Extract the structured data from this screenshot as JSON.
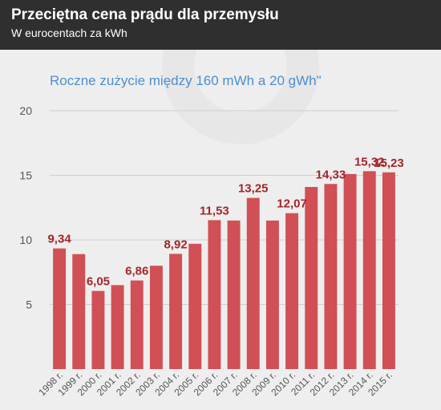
{
  "header": {
    "title": "Przeciętna cena prądu dla przemysłu",
    "subtitle": "W eurocentach za kWh"
  },
  "colors": {
    "header_bg": "#2f2f2f",
    "background": "#eeeeee",
    "bar": "#d05055",
    "value_label": "#a3262a",
    "chart_title": "#4d8fcf",
    "axis_text": "#555555"
  },
  "chart_data": {
    "type": "bar",
    "title": "Roczne zużycie między 160 mWh a 20 gWh\"",
    "xlabel": "",
    "ylabel": "",
    "ylim": [
      0,
      20
    ],
    "yticks": [
      "5",
      "10",
      "15",
      "20"
    ],
    "grid": true,
    "categories": [
      "1998 r.",
      "1999 r.",
      "2000 r.",
      "2001 r.",
      "2002 r.",
      "2003 r.",
      "2004 r.",
      "2005 r.",
      "2006 r.",
      "2007 r.",
      "2008 r.",
      "2009 r.",
      "2010 r.",
      "2011 r.",
      "2012 r.",
      "2013 r.",
      "2014 r.",
      "2015 r."
    ],
    "values": [
      9.34,
      8.9,
      6.05,
      6.5,
      6.86,
      8.0,
      8.92,
      9.7,
      11.53,
      11.5,
      13.25,
      11.5,
      12.07,
      14.1,
      14.33,
      15.1,
      15.32,
      15.23
    ],
    "data_labels": [
      "9,34",
      "",
      "6,05",
      "",
      "6,86",
      "",
      "8,92",
      "",
      "11,53",
      "",
      "13,25",
      "",
      "12,07",
      "",
      "14,33",
      "",
      "15,32",
      "15,23"
    ]
  }
}
